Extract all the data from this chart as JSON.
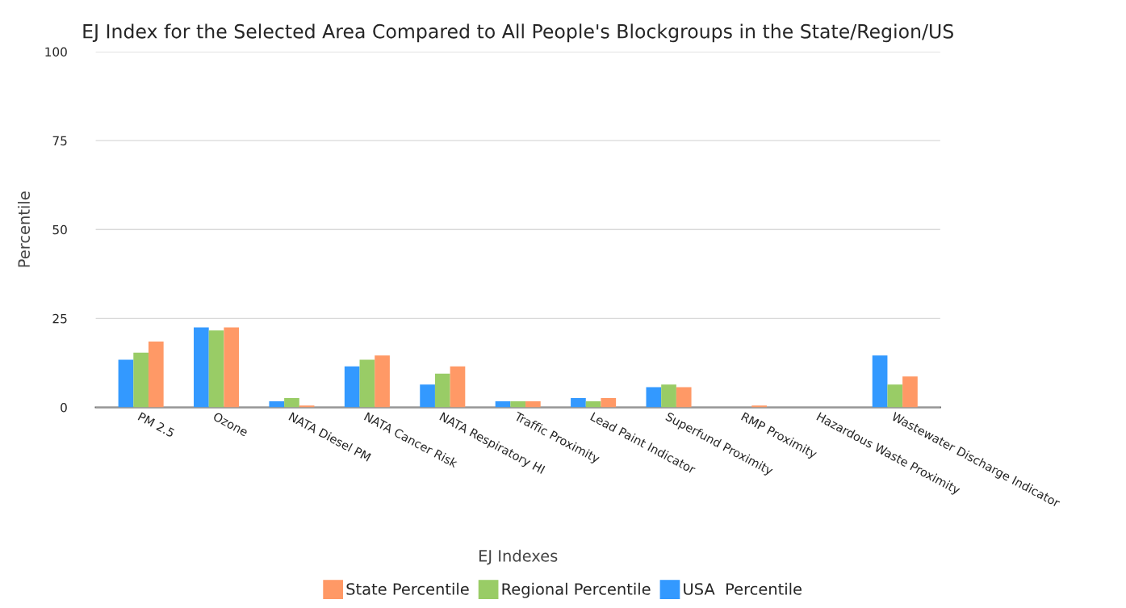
{
  "chart_data": {
    "type": "bar",
    "title": "EJ Index for the Selected Area Compared to All People's Blockgroups in the State/Region/US",
    "xlabel": "EJ Indexes",
    "ylabel": "Percentile",
    "categories": [
      "PM 2.5",
      "Ozone",
      "NATA Diesel PM",
      "NATA Cancer Risk",
      "NATA Respiratory HI",
      "Traffic Proximity",
      "Lead Paint Indicator",
      "Superfund Proximity",
      "RMP Proximity",
      "Hazardous Waste Proximity",
      "Wastewater Discharge Indicator"
    ],
    "series": [
      {
        "name": "USA  Percentile",
        "color": "#3399ff",
        "values": [
          13.4,
          22.5,
          1.7,
          11.5,
          6.4,
          1.7,
          2.6,
          5.7,
          0,
          0,
          14.6
        ]
      },
      {
        "name": "Regional Percentile",
        "color": "#99cc66",
        "values": [
          15.4,
          21.6,
          2.6,
          13.4,
          9.5,
          1.7,
          1.7,
          6.4,
          0,
          0,
          6.4
        ]
      },
      {
        "name": "State Percentile",
        "color": "#ff9966",
        "values": [
          18.5,
          22.5,
          0.5,
          14.6,
          11.5,
          1.7,
          2.6,
          5.7,
          0.5,
          0,
          8.7
        ]
      }
    ],
    "ylim": [
      0,
      100
    ],
    "yticks": [
      0,
      25,
      50,
      75,
      100
    ],
    "grid": "y",
    "legend": "bottom"
  }
}
